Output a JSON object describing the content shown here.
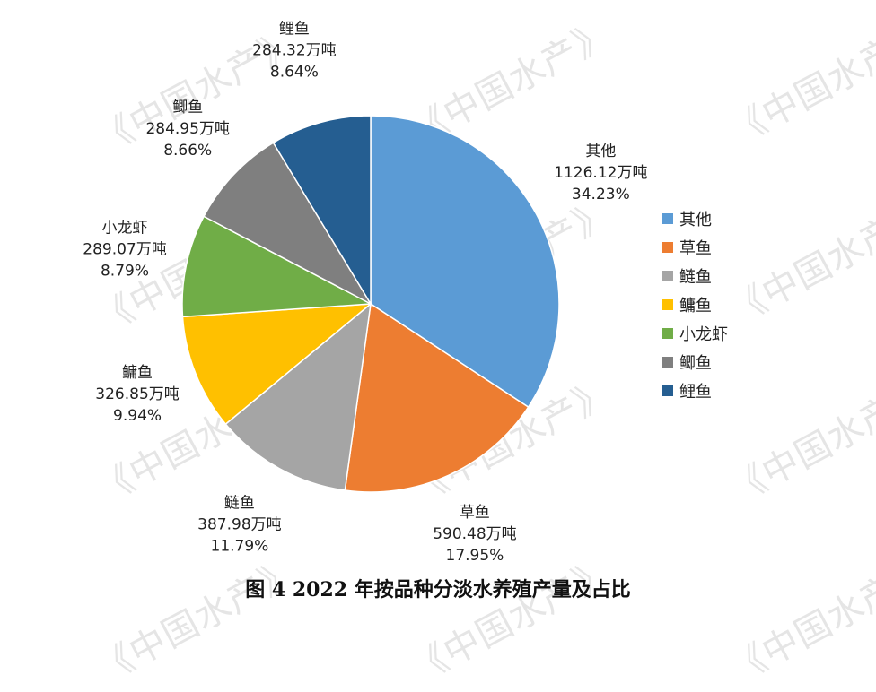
{
  "watermark": "《中国水产》",
  "chart_data": {
    "type": "pie",
    "title": "图 4 2022 年按品种分淡水养殖产量及占比",
    "legend_position": "right",
    "unit": "万吨",
    "slices": [
      {
        "name": "其他",
        "value": 1126.12,
        "value_label": "1126.12万吨",
        "percent": "34.23%",
        "color": "#5B9BD5"
      },
      {
        "name": "草鱼",
        "value": 590.48,
        "value_label": "590.48万吨",
        "percent": "17.95%",
        "color": "#ED7D31"
      },
      {
        "name": "鲢鱼",
        "value": 387.98,
        "value_label": "387.98万吨",
        "percent": "11.79%",
        "color": "#A5A5A5"
      },
      {
        "name": "鳙鱼",
        "value": 326.85,
        "value_label": "326.85万吨",
        "percent": "9.94%",
        "color": "#FFC000"
      },
      {
        "name": "小龙虾",
        "value": 289.07,
        "value_label": "289.07万吨",
        "percent": "8.79%",
        "color": "#70AD47"
      },
      {
        "name": "鲫鱼",
        "value": 284.95,
        "value_label": "284.95万吨",
        "percent": "8.66%",
        "color": "#7F7F7F"
      },
      {
        "name": "鲤鱼",
        "value": 284.32,
        "value_label": "284.32万吨",
        "percent": "8.64%",
        "color": "#255E91"
      }
    ]
  }
}
